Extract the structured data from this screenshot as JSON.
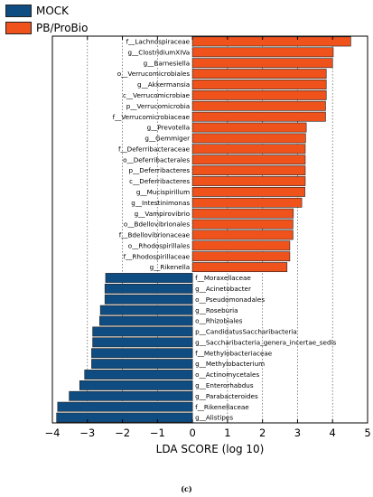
{
  "chart_data": {
    "type": "bar",
    "orientation": "horizontal",
    "xlabel": "LDA SCORE (log 10)",
    "xlim": [
      -4,
      5
    ],
    "xticks": [
      -4,
      -3,
      -2,
      -1,
      0,
      1,
      2,
      3,
      4,
      5
    ],
    "grid": "vertical dashed",
    "legend_position": "top-left",
    "series": [
      {
        "name": "MOCK",
        "color": "#0f4c81"
      },
      {
        "name": "PB/ProBio",
        "color": "#f0521c"
      }
    ],
    "bars": [
      {
        "label": "f__Lachnospiraceae",
        "value": 4.52,
        "group": "PB/ProBio"
      },
      {
        "label": "g__ClostridiumXIVa",
        "value": 4.02,
        "group": "PB/ProBio"
      },
      {
        "label": "g__Barnesiella",
        "value": 4.0,
        "group": "PB/ProBio"
      },
      {
        "label": "o__Verrucomicrobiales",
        "value": 3.82,
        "group": "PB/ProBio"
      },
      {
        "label": "g__Akkermansia",
        "value": 3.82,
        "group": "PB/ProBio"
      },
      {
        "label": "c__Verrucomicrobiae",
        "value": 3.82,
        "group": "PB/ProBio"
      },
      {
        "label": "p__Verrucomicrobia",
        "value": 3.8,
        "group": "PB/ProBio"
      },
      {
        "label": "f__Verrucomicrobiaceae",
        "value": 3.8,
        "group": "PB/ProBio"
      },
      {
        "label": "g__Prevotella",
        "value": 3.25,
        "group": "PB/ProBio"
      },
      {
        "label": "g__Gemmiger",
        "value": 3.23,
        "group": "PB/ProBio"
      },
      {
        "label": "f__Deferribacteraceae",
        "value": 3.22,
        "group": "PB/ProBio"
      },
      {
        "label": "o__Deferribacterales",
        "value": 3.22,
        "group": "PB/ProBio"
      },
      {
        "label": "p__Deferribacteres",
        "value": 3.22,
        "group": "PB/ProBio"
      },
      {
        "label": "c__Deferribacteres",
        "value": 3.22,
        "group": "PB/ProBio"
      },
      {
        "label": "g__Mucispirillum",
        "value": 3.21,
        "group": "PB/ProBio"
      },
      {
        "label": "g__Intestinimonas",
        "value": 3.12,
        "group": "PB/ProBio"
      },
      {
        "label": "g__Vampirovibrio",
        "value": 2.88,
        "group": "PB/ProBio"
      },
      {
        "label": "o__Bdellovibrionales",
        "value": 2.87,
        "group": "PB/ProBio"
      },
      {
        "label": "f__Bdellovibrionaceae",
        "value": 2.87,
        "group": "PB/ProBio"
      },
      {
        "label": "o__Rhodospirillales",
        "value": 2.78,
        "group": "PB/ProBio"
      },
      {
        "label": "f__Rhodospirillaceae",
        "value": 2.78,
        "group": "PB/ProBio"
      },
      {
        "label": "g__Rikenella",
        "value": 2.7,
        "group": "PB/ProBio"
      },
      {
        "label": "f__Moraxellaceae",
        "value": -2.48,
        "group": "MOCK"
      },
      {
        "label": "g__Acinetobacter",
        "value": -2.5,
        "group": "MOCK"
      },
      {
        "label": "o__Pseudomonadales",
        "value": -2.5,
        "group": "MOCK"
      },
      {
        "label": "g__Roseburia",
        "value": -2.63,
        "group": "MOCK"
      },
      {
        "label": "o__Rhizobiales",
        "value": -2.65,
        "group": "MOCK"
      },
      {
        "label": "p__CandidatusSaccharibacteria",
        "value": -2.85,
        "group": "MOCK"
      },
      {
        "label": "g__Saccharibacteria_genera_incertae_sedis",
        "value": -2.85,
        "group": "MOCK"
      },
      {
        "label": "f__Methylobacteriaceae",
        "value": -2.88,
        "group": "MOCK"
      },
      {
        "label": "g__Methylobacterium",
        "value": -2.88,
        "group": "MOCK"
      },
      {
        "label": "o__Actinomycetales",
        "value": -3.08,
        "group": "MOCK"
      },
      {
        "label": "g__Enterorhabdus",
        "value": -3.22,
        "group": "MOCK"
      },
      {
        "label": "g__Parabacteroides",
        "value": -3.52,
        "group": "MOCK"
      },
      {
        "label": "f__Rikenellaceae",
        "value": -3.85,
        "group": "MOCK"
      },
      {
        "label": "g__Alistipes",
        "value": -3.88,
        "group": "MOCK"
      }
    ]
  },
  "figure": {
    "caption": "(c)"
  }
}
